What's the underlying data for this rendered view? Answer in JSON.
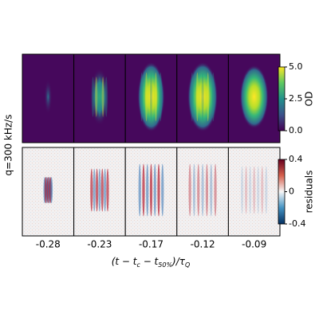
{
  "ylabel": "q=300 kHz/s",
  "columns": [
    "-0.28",
    "-0.23",
    "-0.17",
    "-0.12",
    "-0.09"
  ],
  "xlabel": [
    "(t − t",
    "c",
    " − t",
    "50%",
    ")/τ",
    "Q"
  ],
  "colorbars": [
    {
      "label": "OD",
      "lim": [
        0,
        5
      ],
      "ticks": [
        {
          "value": 0,
          "label": "0.0"
        },
        {
          "value": 2.5,
          "label": "2.5"
        },
        {
          "value": 5,
          "label": "5.0"
        }
      ]
    },
    {
      "label": "residuals",
      "lim": [
        -0.4,
        0.4
      ],
      "ticks": [
        -0.4,
        0,
        0.4
      ]
    }
  ]
}
